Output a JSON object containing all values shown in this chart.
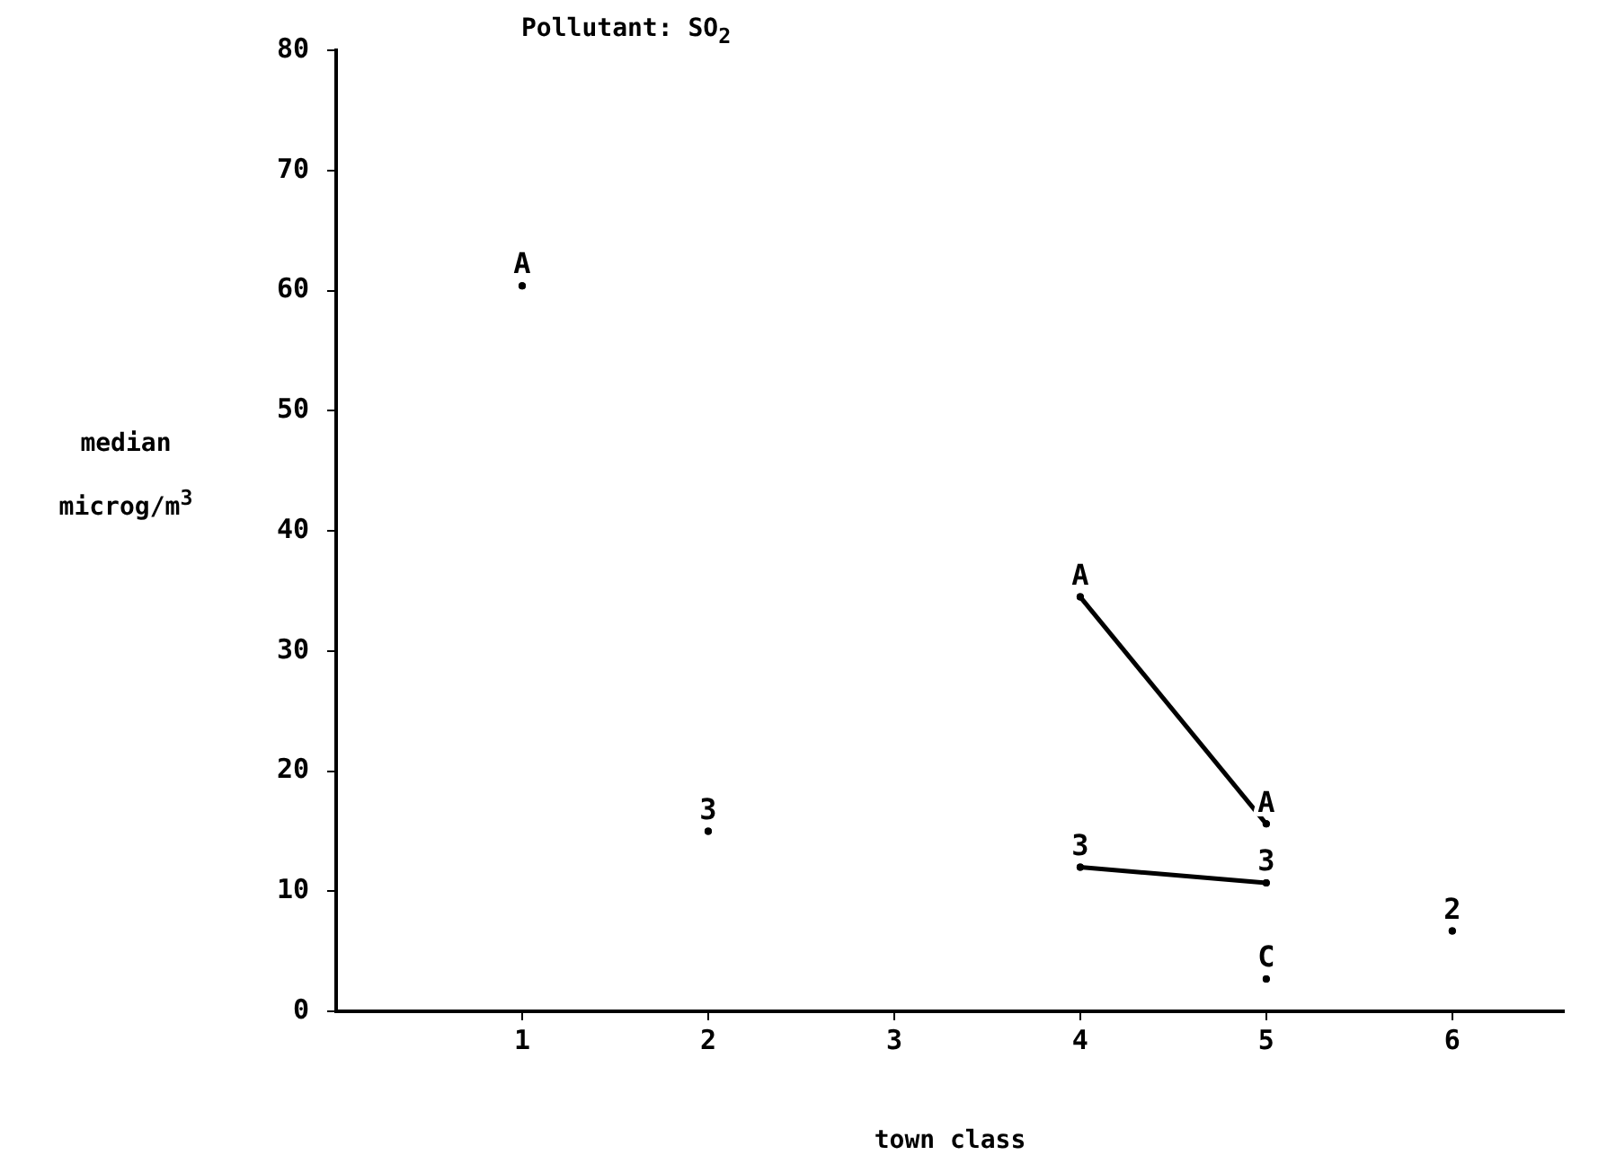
{
  "chart_data": {
    "type": "scatter",
    "title": "Pollutant: SO$_{2}$",
    "xlabel": "town class",
    "ylabel": "median microg/m$^{3}$",
    "xlim": [
      0,
      6.6
    ],
    "ylim": [
      0,
      80
    ],
    "xticks": [
      1,
      2,
      3,
      4,
      5,
      6
    ],
    "yticks": [
      0,
      10,
      20,
      30,
      40,
      50,
      60,
      70,
      80
    ],
    "grid": false,
    "legend": false,
    "marker": "circle",
    "series": [
      {
        "name": "A",
        "color": "#000000",
        "x": [
          1
        ],
        "values": [
          60.4
        ]
      },
      {
        "name": "A",
        "type": "line",
        "color": "#000000",
        "x": [
          4,
          5
        ],
        "values": [
          34.5,
          15.6
        ]
      },
      {
        "name": "3",
        "type": "scatter",
        "color": "#000000",
        "x": [
          2
        ],
        "values": [
          15.0
        ]
      },
      {
        "name": "3",
        "type": "line",
        "color": "#000000",
        "x": [
          4,
          5
        ],
        "values": [
          12.0,
          10.7
        ]
      },
      {
        "name": "2",
        "type": "scatter",
        "color": "#000000",
        "x": [
          6
        ],
        "values": [
          6.7
        ]
      },
      {
        "name": "C",
        "type": "scatter",
        "color": "#000000",
        "x": [
          5
        ],
        "values": [
          2.7
        ]
      }
    ]
  }
}
